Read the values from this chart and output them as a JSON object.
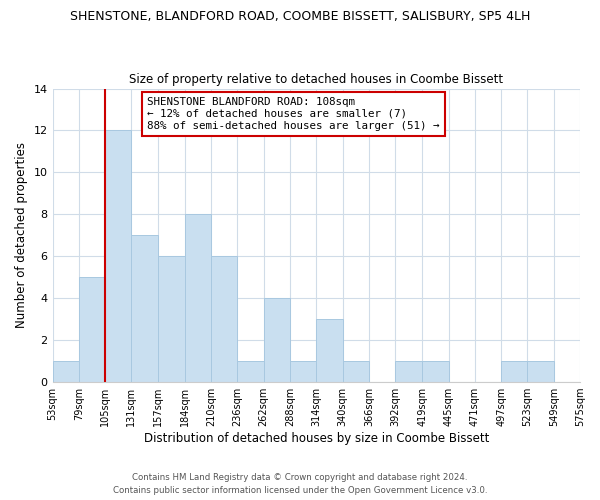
{
  "title1": "SHENSTONE, BLANDFORD ROAD, COOMBE BISSETT, SALISBURY, SP5 4LH",
  "title2": "Size of property relative to detached houses in Coombe Bissett",
  "xlabel": "Distribution of detached houses by size in Coombe Bissett",
  "ylabel": "Number of detached properties",
  "bin_edges": [
    53,
    79,
    105,
    131,
    157,
    184,
    210,
    236,
    262,
    288,
    314,
    340,
    366,
    392,
    419,
    445,
    471,
    497,
    523,
    549,
    575
  ],
  "counts": [
    1,
    5,
    12,
    7,
    6,
    8,
    6,
    1,
    4,
    1,
    3,
    1,
    0,
    1,
    1,
    0,
    0,
    1,
    1,
    0
  ],
  "bar_color": "#c9dff0",
  "bar_edge_color": "#a8c8e0",
  "ref_line_x": 105,
  "ref_line_color": "#cc0000",
  "annotation_lines": [
    "SHENSTONE BLANDFORD ROAD: 108sqm",
    "← 12% of detached houses are smaller (7)",
    "88% of semi-detached houses are larger (51) →"
  ],
  "ylim": [
    0,
    14
  ],
  "yticks": [
    0,
    2,
    4,
    6,
    8,
    10,
    12,
    14
  ],
  "tick_labels": [
    "53sqm",
    "79sqm",
    "105sqm",
    "131sqm",
    "157sqm",
    "184sqm",
    "210sqm",
    "236sqm",
    "262sqm",
    "288sqm",
    "314sqm",
    "340sqm",
    "366sqm",
    "392sqm",
    "419sqm",
    "445sqm",
    "471sqm",
    "497sqm",
    "523sqm",
    "549sqm",
    "575sqm"
  ],
  "footer1": "Contains HM Land Registry data © Crown copyright and database right 2024.",
  "footer2": "Contains public sector information licensed under the Open Government Licence v3.0.",
  "bg_color": "#ffffff",
  "grid_color": "#d0dce8"
}
